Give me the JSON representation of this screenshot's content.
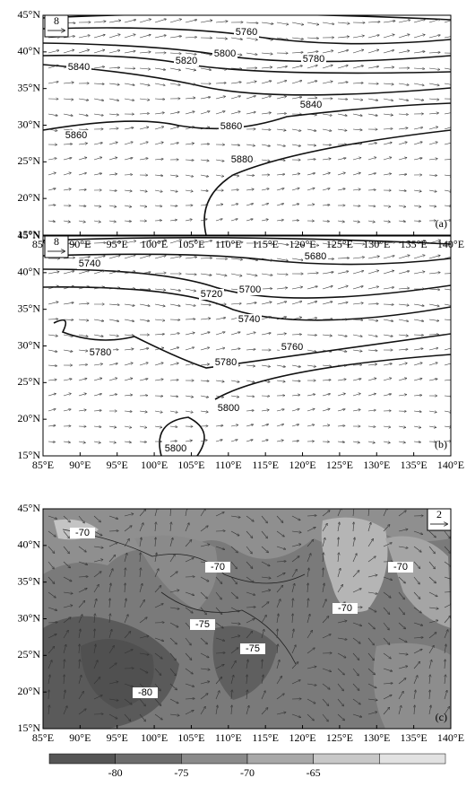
{
  "panels": [
    {
      "panel_label": "(a)",
      "ref_vector": "8",
      "xticks": [
        "85°E",
        "90°E",
        "95°E",
        "100°E",
        "105°E",
        "110°E",
        "115°E",
        "120°E",
        "125°E",
        "130°E",
        "135°E",
        "140°E"
      ],
      "yticks": [
        "45°N",
        "40°N",
        "35°N",
        "30°N",
        "25°N",
        "20°N",
        "15°N"
      ],
      "contour_labels": [
        5760,
        5800,
        5820,
        5780,
        5840,
        5840,
        5860,
        5860,
        5880
      ]
    },
    {
      "panel_label": "(b)",
      "ref_vector": "8",
      "xticks": [
        "85°E",
        "90°E",
        "95°E",
        "100°E",
        "105°E",
        "110°E",
        "115°E",
        "120°E",
        "125°E",
        "130°E",
        "135°E",
        "140°E"
      ],
      "yticks": [
        "45°N",
        "40°N",
        "35°N",
        "30°N",
        "25°N",
        "20°N",
        "15°N"
      ],
      "contour_labels": [
        5740,
        5720,
        5700,
        5680,
        5740,
        5760,
        5780,
        5780,
        5800,
        5800
      ]
    },
    {
      "panel_label": "(c)",
      "ref_vector": "2",
      "xticks": [
        "85°E",
        "90°E",
        "95°E",
        "100°E",
        "105°E",
        "110°E",
        "115°E",
        "120°E",
        "125°E",
        "130°E",
        "135°E",
        "140°E"
      ],
      "yticks": [
        "45°N",
        "40°N",
        "35°N",
        "30°N",
        "25°N",
        "20°N",
        "15°N"
      ],
      "contour_labels": [
        -70,
        -70,
        -75,
        -75,
        -70,
        -70,
        -80
      ]
    }
  ],
  "colorbar": {
    "labels": [
      -80,
      -75,
      -70,
      -65
    ]
  }
}
